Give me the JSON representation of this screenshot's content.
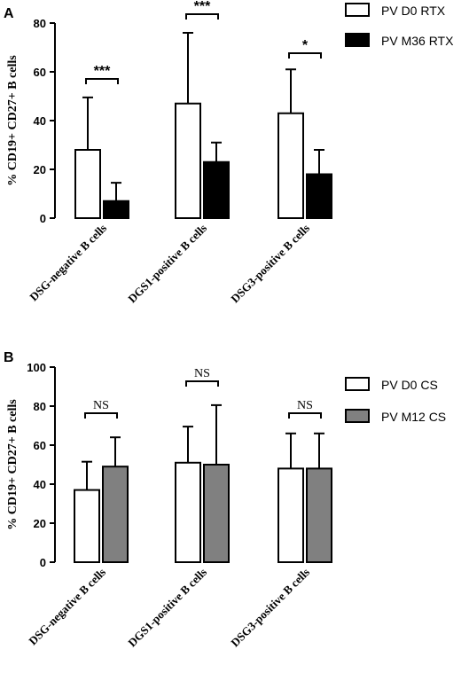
{
  "chart_data": [
    {
      "panel": "A",
      "type": "bar",
      "ylabel": "% CD19+ CD27+ B cells",
      "ylim": [
        0,
        80
      ],
      "yticks": [
        0,
        20,
        40,
        60,
        80
      ],
      "categories": [
        "DSG-negative B cells",
        "DGS1-positive B cells",
        "DSG3-positive B cells"
      ],
      "series": [
        {
          "name": "PV D0 RTX",
          "color": "#ffffff",
          "values": [
            28,
            47,
            43
          ],
          "errors": [
            21.5,
            29,
            18
          ]
        },
        {
          "name": "PV M36 RTX",
          "color": "#000000",
          "values": [
            7,
            23,
            18
          ],
          "errors": [
            7.5,
            8,
            10
          ]
        }
      ],
      "significance": [
        "***",
        "***",
        "*"
      ],
      "legend_position": "top-right"
    },
    {
      "panel": "B",
      "type": "bar",
      "ylabel": "% CD19+ CD27+ B cells",
      "ylim": [
        0,
        100
      ],
      "yticks": [
        0,
        20,
        40,
        60,
        80,
        100
      ],
      "categories": [
        "DSG-negative B cells",
        "DGS1-positive B cells",
        "DSG3-positive B cells"
      ],
      "series": [
        {
          "name": "PV D0 CS",
          "color": "#ffffff",
          "values": [
            37,
            51,
            48
          ],
          "errors": [
            14.5,
            18.5,
            18
          ]
        },
        {
          "name": "PV M12 CS",
          "color": "#808080",
          "values": [
            49,
            50,
            48
          ],
          "errors": [
            15,
            30.5,
            18
          ]
        }
      ],
      "significance": [
        "NS",
        "NS",
        "NS"
      ],
      "legend_position": "top-right"
    }
  ]
}
